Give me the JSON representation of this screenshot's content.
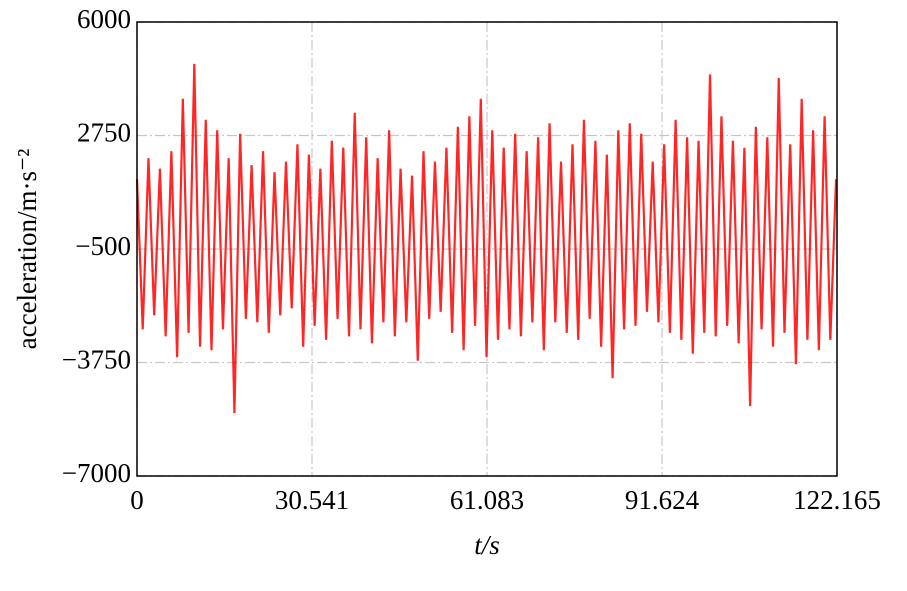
{
  "chart_data": {
    "type": "line",
    "x_label": "t/s",
    "y_label": "acceleration/m·s⁻²",
    "x": [
      0,
      1,
      2,
      3,
      4,
      5,
      6,
      7,
      8,
      9,
      10,
      11,
      12,
      13,
      14,
      15,
      16,
      17,
      18,
      19,
      20,
      21,
      22,
      23,
      24,
      25,
      26,
      27,
      28,
      29,
      30,
      31,
      32,
      33,
      34,
      35,
      36,
      37,
      38,
      39,
      40,
      41,
      42,
      43,
      44,
      45,
      46,
      47,
      48,
      49,
      50,
      51,
      52,
      53,
      54,
      55,
      56,
      57,
      58,
      59,
      60,
      61,
      62,
      63,
      64,
      65,
      66,
      67,
      68,
      69,
      70,
      71,
      72,
      73,
      74,
      75,
      76,
      77,
      78,
      79,
      80,
      81,
      82,
      83,
      84,
      85,
      86,
      87,
      88,
      89,
      90,
      91,
      92,
      93,
      94,
      95,
      96,
      97,
      98,
      99,
      100,
      101,
      102,
      103,
      104,
      105,
      106,
      107,
      108,
      109,
      110,
      111,
      112,
      113,
      114,
      115,
      116,
      117,
      118,
      119,
      120,
      121,
      122
    ],
    "series": [
      {
        "color": "#ff0000",
        "values": [
          1500,
          -2800,
          2100,
          -2400,
          1800,
          -3000,
          2300,
          -3600,
          3800,
          -2900,
          4800,
          -3300,
          3200,
          -3400,
          2900,
          -2800,
          2100,
          -5200,
          2800,
          -2500,
          1900,
          -2600,
          2300,
          -2900,
          1700,
          -2400,
          2000,
          -2200,
          2500,
          -3300,
          2200,
          -2700,
          1800,
          -3100,
          2600,
          -2500,
          2400,
          -3000,
          3400,
          -2800,
          2700,
          -3200,
          2100,
          -2600,
          2900,
          -3000,
          1800,
          -2600,
          1600,
          -3700,
          2300,
          -2500,
          2000,
          -2300,
          2400,
          -2900,
          3000,
          -3400,
          3300,
          -2700,
          3800,
          -3600,
          2900,
          -3100,
          2400,
          -2800,
          2800,
          -3000,
          2300,
          -2600,
          2700,
          -3400,
          3100,
          -2600,
          2000,
          -2900,
          2500,
          -3100,
          3200,
          -2500,
          2600,
          -3300,
          2200,
          -4200,
          2900,
          -2800,
          3100,
          -2700,
          2800,
          -2300,
          2000,
          -2600,
          2500,
          -2900,
          3200,
          -3100,
          2700,
          -3500,
          2600,
          -2900,
          4500,
          -3000,
          3300,
          -2700,
          2600,
          -3200,
          2400,
          -5000,
          3000,
          -2800,
          2700,
          -3300,
          4400,
          -2900,
          2500,
          -3800,
          3800,
          -3100,
          2900,
          -3400,
          3300,
          -3100,
          1500
        ]
      }
    ],
    "xlim": [
      0,
      122.165
    ],
    "ylim": [
      -7000,
      6000
    ],
    "xticks": [
      0,
      30.541,
      61.083,
      91.624,
      122.165
    ],
    "yticks": [
      {
        "value": -7000,
        "label": "−7000"
      },
      {
        "value": -3750,
        "label": "−3750"
      },
      {
        "value": -500,
        "label": "−500"
      },
      2750,
      6000
    ],
    "grid": true
  }
}
